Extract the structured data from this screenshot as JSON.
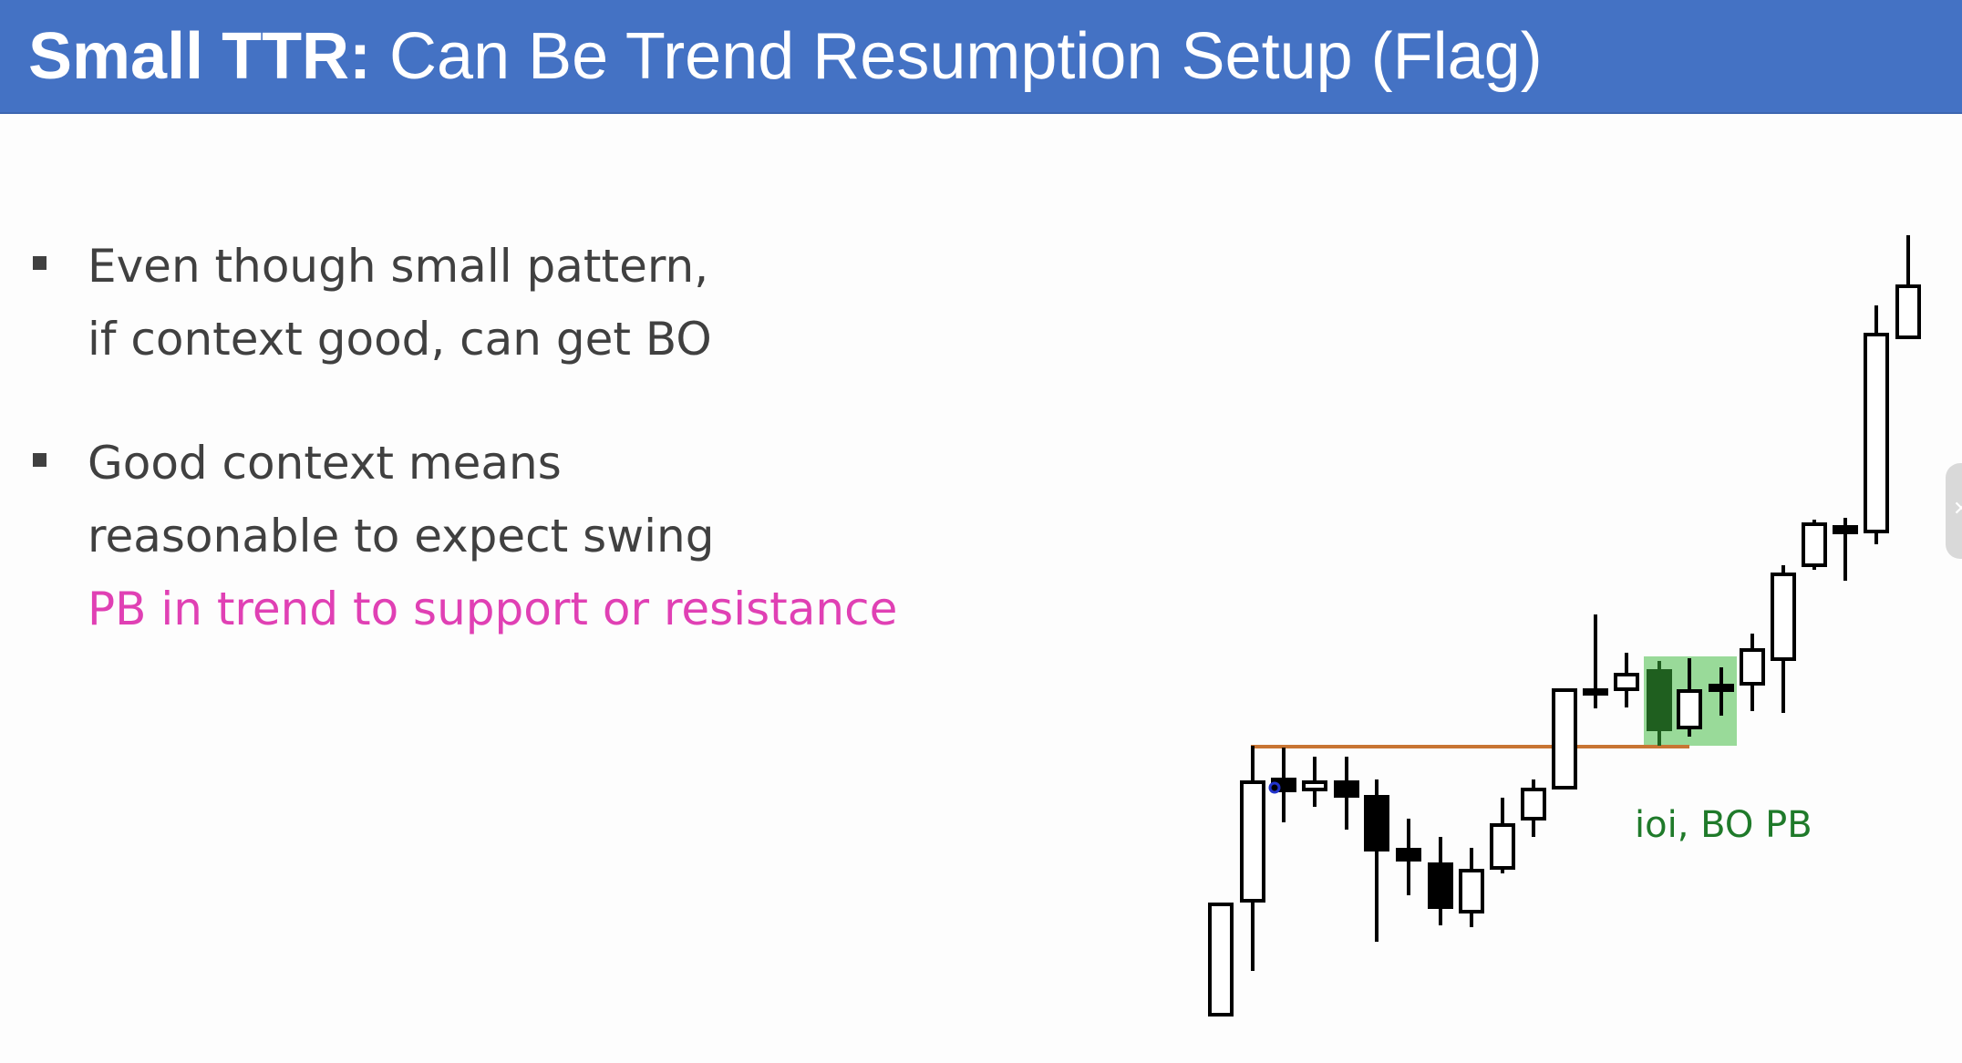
{
  "slide": {
    "title_bold": "Small TTR:",
    "title_rest": " Can Be Trend Resumption Setup (Flag)"
  },
  "bullets": [
    {
      "lines": [
        "Even though small pattern,",
        "if context good, can get BO"
      ]
    },
    {
      "lines": [
        "Good context means",
        "reasonable to expect swing"
      ],
      "highlight": "PB in trend to support or resistance"
    }
  ],
  "annotation": "ioi, BO PB",
  "side_tab_icon": "close-icon",
  "colors": {
    "title_bg": "#4472c4",
    "text": "#404040",
    "highlight": "#e040b4",
    "annotation": "#1f7a2a",
    "support_line": "#c87533",
    "setup_box": "#7fd17f"
  }
}
